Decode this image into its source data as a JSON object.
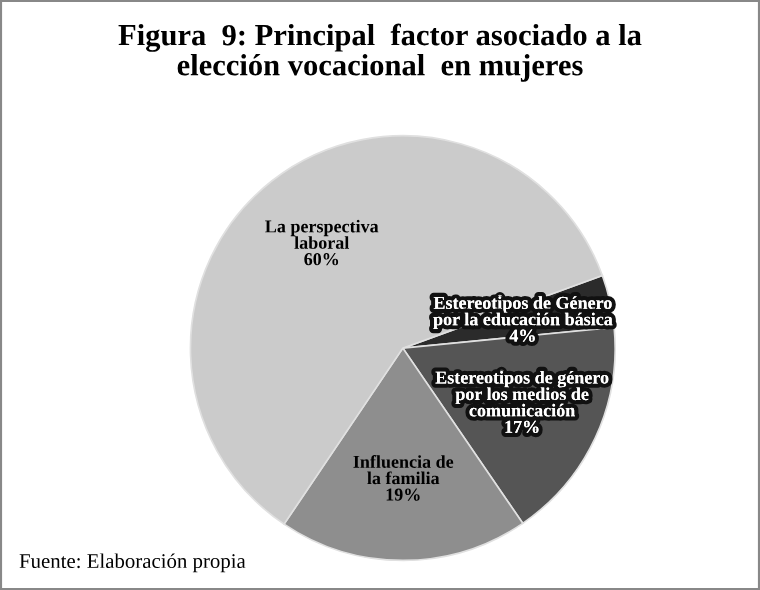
{
  "chart_data": {
    "type": "pie",
    "title": "Figura  9: Principal  factor asociado a la\nelección vocacional  en mujeres",
    "categories": [
      "Estereotipos de Género\npor la educación básica",
      "Estereotipos de género\npor los medios de\ncomunicación",
      "Influencia de\nla familia",
      "La perspectiva\nlaboral"
    ],
    "values": [
      4,
      17,
      19,
      60
    ],
    "value_labels": [
      "4%",
      "17%",
      "19%",
      "60%"
    ],
    "colors": [
      "#2b2b2b",
      "#555555",
      "#8e8e8e",
      "#cbcbcb"
    ],
    "annotations": [
      "Fuente: Elaboración propia"
    ],
    "legend": false
  }
}
